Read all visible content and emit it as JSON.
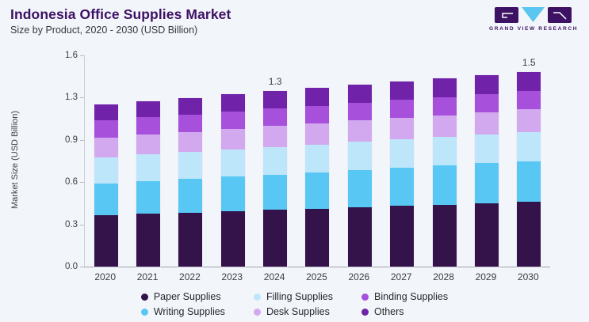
{
  "header": {
    "title": "Indonesia Office Supplies Market",
    "subtitle": "Size by Product, 2020 - 2030 (USD Billion)"
  },
  "logo": {
    "brand": "GRAND VIEW RESEARCH",
    "block_color": "#3D1163",
    "triangle_color": "#5BC6F0"
  },
  "chart_data": {
    "type": "bar",
    "stacked": true,
    "title": "Indonesia Office Supplies Market",
    "subtitle": "Size by Product, 2020 - 2030 (USD Billion)",
    "ylabel": "Market Size (USD Billion)",
    "xlabel": "",
    "ylim": [
      0,
      1.6
    ],
    "y_tick_labels": [
      "1.6",
      "1.3",
      "0.9",
      "0.6",
      "0.3",
      "0.0"
    ],
    "grid": false,
    "legend_position": "bottom",
    "categories": [
      "2020",
      "2021",
      "2022",
      "2023",
      "2024",
      "2025",
      "2026",
      "2027",
      "2028",
      "2029",
      "2030"
    ],
    "series": [
      {
        "name": "Paper Supplies",
        "color": "#331349",
        "values": [
          0.39,
          0.4,
          0.41,
          0.42,
          0.43,
          0.44,
          0.45,
          0.46,
          0.47,
          0.48,
          0.49
        ]
      },
      {
        "name": "Writing Supplies",
        "color": "#58C7F4",
        "values": [
          0.24,
          0.247,
          0.254,
          0.261,
          0.268,
          0.275,
          0.282,
          0.289,
          0.296,
          0.303,
          0.31
        ]
      },
      {
        "name": "Filling Supplies",
        "color": "#BEE6FA",
        "values": [
          0.2,
          0.202,
          0.204,
          0.206,
          0.208,
          0.21,
          0.212,
          0.214,
          0.216,
          0.218,
          0.22
        ]
      },
      {
        "name": "Desk Supplies",
        "color": "#D2A9EE",
        "values": [
          0.15,
          0.152,
          0.154,
          0.156,
          0.158,
          0.16,
          0.162,
          0.164,
          0.166,
          0.168,
          0.17
        ]
      },
      {
        "name": "Binding Supplies",
        "color": "#A650DC",
        "values": [
          0.13,
          0.131,
          0.132,
          0.133,
          0.134,
          0.135,
          0.136,
          0.137,
          0.138,
          0.139,
          0.14
        ]
      },
      {
        "name": "Others",
        "color": "#7023A9",
        "values": [
          0.12,
          0.123,
          0.125,
          0.128,
          0.13,
          0.133,
          0.135,
          0.138,
          0.14,
          0.143,
          0.145
        ]
      }
    ],
    "totals": [
      1.23,
      1.25,
      1.28,
      1.3,
      1.33,
      1.35,
      1.38,
      1.4,
      1.43,
      1.45,
      1.48
    ],
    "value_labels": {
      "2024": "1.3",
      "2030": "1.5"
    }
  },
  "legend": {
    "items": [
      {
        "label": "Paper Supplies",
        "color": "#331349"
      },
      {
        "label": "Filling Supplies",
        "color": "#BEE6FA"
      },
      {
        "label": "Binding Supplies",
        "color": "#A650DC"
      },
      {
        "label": "Writing Supplies",
        "color": "#58C7F4"
      },
      {
        "label": "Desk Supplies",
        "color": "#D2A9EE"
      },
      {
        "label": "Others",
        "color": "#7023A9"
      }
    ]
  }
}
